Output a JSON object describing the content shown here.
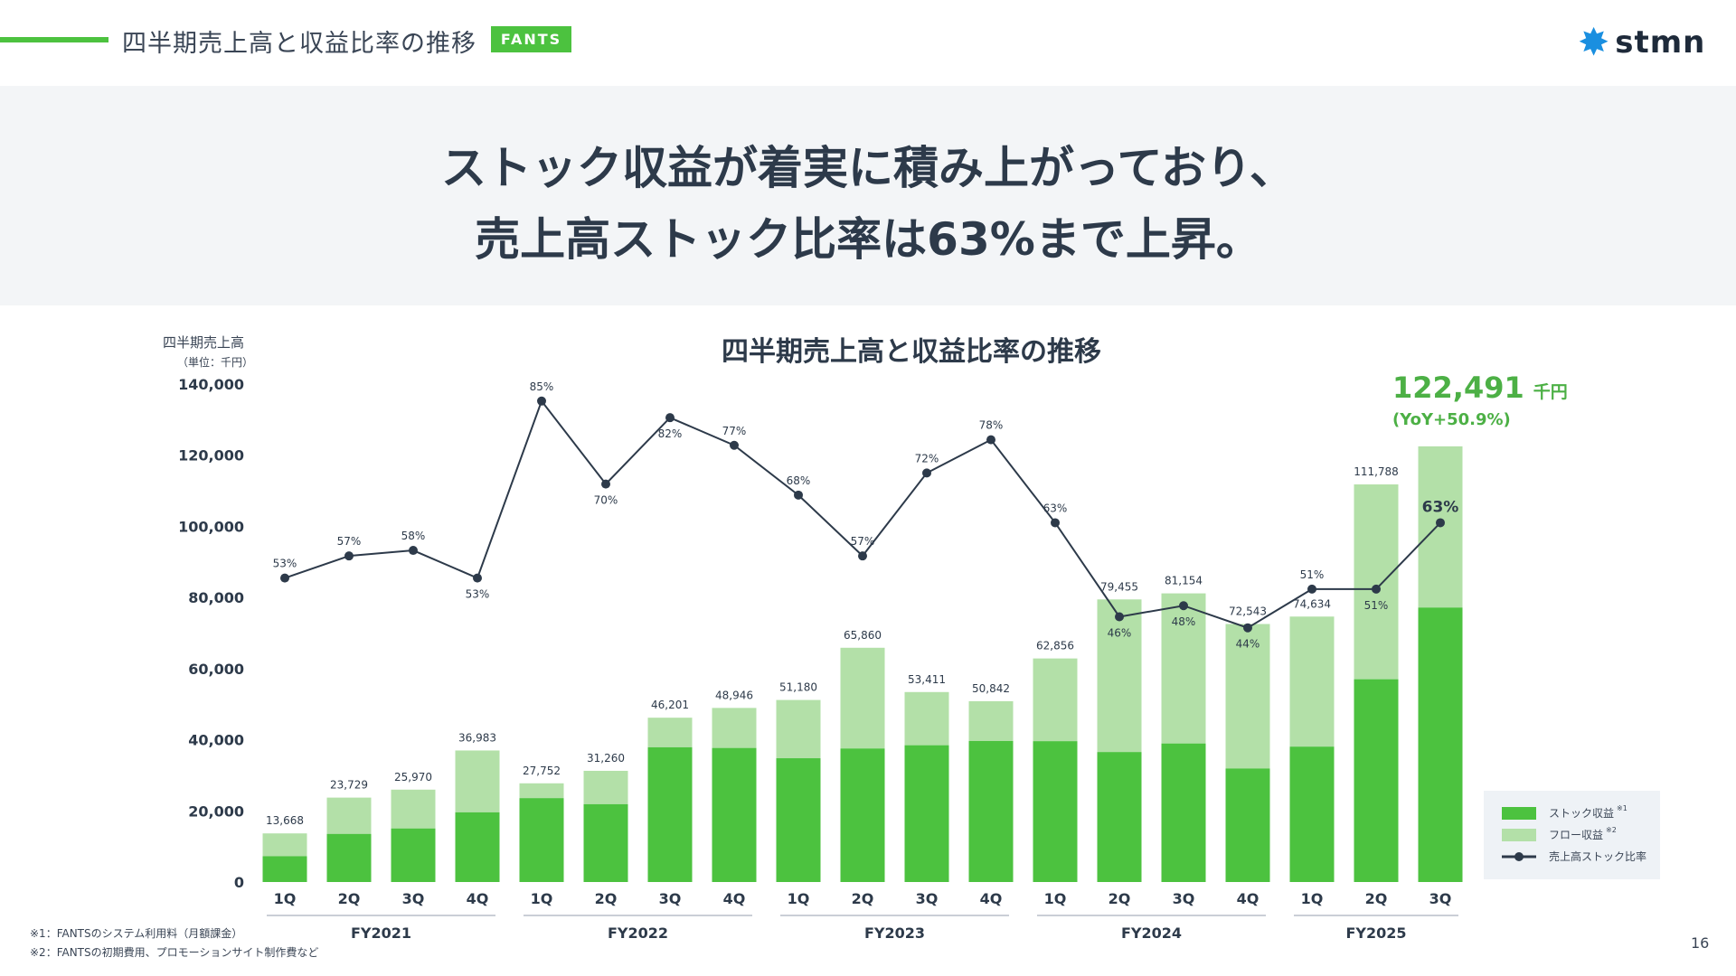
{
  "header": {
    "title": "四半期売上高と収益比率の推移",
    "badge": "FANTS",
    "logo_text": "stmn",
    "logo_icon": "star-burst-icon"
  },
  "headline": {
    "line1": "ストック収益が着実に積み上がっており、",
    "line2": "売上高ストック比率は63%まで上昇。"
  },
  "colors": {
    "stock": "#4cc23f",
    "flow": "#b3e0a8",
    "ratio_line": "#2d3a4a",
    "accent": "#4cc23f"
  },
  "callout": {
    "value": "122,491",
    "unit": "千円",
    "yoy": "(YoY+50.9%)"
  },
  "legend": {
    "stock": "ストック収益",
    "stock_note": "※1",
    "flow": "フロー収益",
    "flow_note": "※2",
    "ratio": "売上高ストック比率"
  },
  "footnotes": [
    "※1：FANTSのシステム利用料（月額課金）",
    "※2：FANTSの初期費用、プロモーションサイト制作費など"
  ],
  "page_number": "16",
  "chart_data": {
    "type": "bar",
    "title": "四半期売上高と収益比率の推移",
    "ylabel": "四半期売上高",
    "yunit": "（単位：千円）",
    "ylim": [
      0,
      140000
    ],
    "yticks": [
      "0",
      "20,000",
      "40,000",
      "60,000",
      "80,000",
      "100,000",
      "120,000",
      "140,000"
    ],
    "grid": false,
    "legend_position": "bottom-right",
    "categories": [
      "1Q",
      "2Q",
      "3Q",
      "4Q",
      "1Q",
      "2Q",
      "3Q",
      "4Q",
      "1Q",
      "2Q",
      "3Q",
      "4Q",
      "1Q",
      "2Q",
      "3Q",
      "4Q",
      "1Q",
      "2Q",
      "3Q"
    ],
    "groups": [
      {
        "label": "FY2021",
        "count": 4
      },
      {
        "label": "FY2022",
        "count": 4
      },
      {
        "label": "FY2023",
        "count": 4
      },
      {
        "label": "FY2024",
        "count": 4
      },
      {
        "label": "FY2025",
        "count": 3
      }
    ],
    "totals": [
      13668,
      23729,
      25970,
      36983,
      27752,
      31260,
      46201,
      48946,
      51180,
      65860,
      53411,
      50842,
      62856,
      79455,
      81154,
      72543,
      74634,
      111788,
      122491
    ],
    "total_labels": [
      "13,668",
      "23,729",
      "25,970",
      "36,983",
      "27,752",
      "31,260",
      "46,201",
      "48,946",
      "51,180",
      "65,860",
      "53,411",
      "50,842",
      "62,856",
      "79,455",
      "81,154",
      "72,543",
      "74,634",
      "111,788",
      ""
    ],
    "stock_ratio_pct": [
      53,
      57,
      58,
      53,
      85,
      70,
      82,
      77,
      68,
      57,
      72,
      78,
      63,
      46,
      48,
      44,
      51,
      51,
      63
    ],
    "series": [
      {
        "name": "ストック収益"
      },
      {
        "name": "フロー収益"
      },
      {
        "name": "売上高ストック比率"
      }
    ]
  }
}
